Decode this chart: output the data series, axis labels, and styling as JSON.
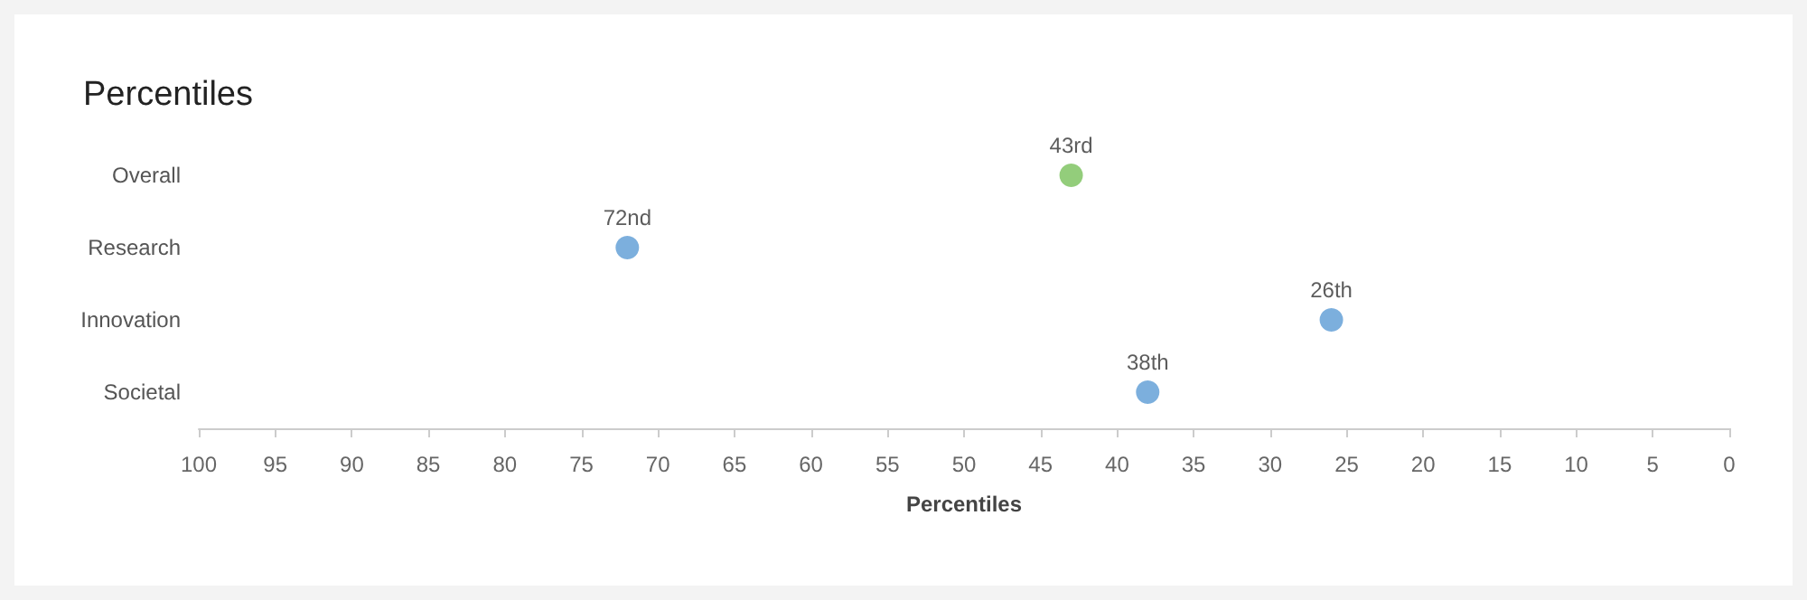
{
  "chart_data": {
    "type": "scatter",
    "title": "Percentiles",
    "xlabel": "Percentiles",
    "orientation": "horizontal",
    "categories": [
      "Overall",
      "Research",
      "Innovation",
      "Societal"
    ],
    "values": [
      43,
      72,
      26,
      38
    ],
    "colors": [
      "#78c05a",
      "#5b9bd5",
      "#5b9bd5",
      "#5b9bd5"
    ],
    "value_labels": [
      "43rd",
      "72nd",
      "26th",
      "38th"
    ],
    "xlim": [
      100,
      0
    ],
    "xticks": [
      100,
      95,
      90,
      85,
      80,
      75,
      70,
      65,
      60,
      55,
      50,
      45,
      40,
      35,
      30,
      25,
      20,
      15,
      10,
      5,
      0
    ],
    "marker": "circle",
    "grid": false
  }
}
